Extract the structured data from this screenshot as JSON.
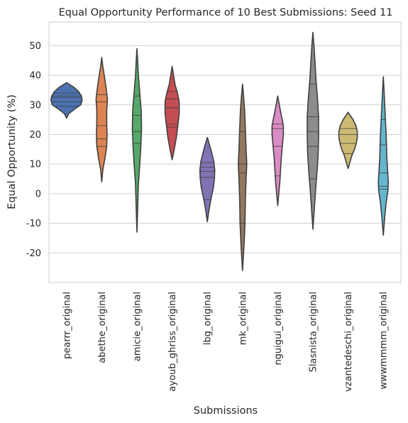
{
  "chart_data": {
    "type": "violin",
    "title": "Equal Opportunity Performance of 10 Best Submissions: Seed 11",
    "xlabel": "Submissions",
    "ylabel": "Equal Opportunity (%)",
    "ylim": [
      -30,
      58
    ],
    "yticks": [
      -20,
      -10,
      0,
      10,
      20,
      30,
      40,
      50
    ],
    "grid": "horizontal",
    "categories": [
      "pearrr_original",
      "abethe_original",
      "amicie_original",
      "ayoub_ghriss_original",
      "lbg_original",
      "mk_original",
      "nguigui_original",
      "Slasnista_original",
      "vzantedeschi_original",
      "wwwmmmm_original"
    ],
    "colors": [
      "#4c72b0",
      "#dd8452",
      "#55a868",
      "#c44e52",
      "#8172b3",
      "#937860",
      "#da8bc3",
      "#8c8c8c",
      "#ccb974",
      "#64b5cd"
    ],
    "series": [
      {
        "min": 25.5,
        "max": 37.5,
        "quartiles": [
          29.5,
          31.5,
          33.5
        ],
        "points": [
          29.5,
          31.0,
          32.5,
          33.0,
          34.0
        ],
        "profile": [
          [
            25.5,
            0
          ],
          [
            27,
            3
          ],
          [
            28.5,
            11
          ],
          [
            30,
            20
          ],
          [
            31.5,
            22
          ],
          [
            33,
            21
          ],
          [
            34.5,
            17
          ],
          [
            36,
            10
          ],
          [
            37.5,
            0
          ]
        ]
      },
      {
        "min": 4,
        "max": 46,
        "quartiles": [
          16,
          22.5,
          33
        ],
        "points": [
          16,
          18.5,
          23,
          31,
          33.5
        ],
        "profile": [
          [
            4,
            0
          ],
          [
            8,
            1.5
          ],
          [
            12,
            4.5
          ],
          [
            16,
            7
          ],
          [
            20,
            7.5
          ],
          [
            24,
            7
          ],
          [
            28,
            7
          ],
          [
            32,
            8
          ],
          [
            36,
            6
          ],
          [
            40,
            3.5
          ],
          [
            43,
            1.5
          ],
          [
            46,
            0
          ]
        ]
      },
      {
        "min": -13,
        "max": 49,
        "quartiles": [
          17,
          21.5,
          27
        ],
        "points": [
          17,
          21,
          26.5,
          33
        ],
        "profile": [
          [
            -13,
            0
          ],
          [
            -5,
            1
          ],
          [
            3,
            2
          ],
          [
            10,
            4
          ],
          [
            16,
            5.5
          ],
          [
            22,
            6.5
          ],
          [
            28,
            6
          ],
          [
            34,
            4
          ],
          [
            40,
            2
          ],
          [
            45,
            1
          ],
          [
            49,
            0
          ]
        ]
      },
      {
        "min": 11.5,
        "max": 43,
        "quartiles": [
          22.5,
          28,
          32
        ],
        "points": [
          22.5,
          23.5,
          29,
          32,
          34.5
        ],
        "profile": [
          [
            11.5,
            0
          ],
          [
            15,
            3
          ],
          [
            19,
            6
          ],
          [
            23,
            8
          ],
          [
            27,
            10
          ],
          [
            31,
            10
          ],
          [
            34,
            7.5
          ],
          [
            37,
            4
          ],
          [
            40,
            2
          ],
          [
            43,
            0
          ]
        ]
      },
      {
        "min": -9.5,
        "max": 19,
        "quartiles": [
          5,
          7.5,
          9
        ],
        "points": [
          -2,
          5.5,
          7.5,
          9,
          10.5
        ],
        "profile": [
          [
            -9.5,
            0
          ],
          [
            -6,
            2
          ],
          [
            -2,
            5
          ],
          [
            2,
            8.5
          ],
          [
            5,
            10
          ],
          [
            8,
            10.5
          ],
          [
            11,
            9
          ],
          [
            14,
            6
          ],
          [
            17,
            2.5
          ],
          [
            19,
            0
          ]
        ]
      },
      {
        "min": -26,
        "max": 37,
        "quartiles": [
          -5,
          8.5,
          21
        ],
        "points": [
          -10,
          7,
          10,
          21
        ],
        "profile": [
          [
            -26,
            0
          ],
          [
            -18,
            2
          ],
          [
            -10,
            3.5
          ],
          [
            -2,
            4
          ],
          [
            5,
            5
          ],
          [
            10,
            6
          ],
          [
            15,
            5
          ],
          [
            22,
            4
          ],
          [
            28,
            3
          ],
          [
            33,
            1.5
          ],
          [
            37,
            0
          ]
        ]
      },
      {
        "min": -4,
        "max": 33,
        "quartiles": [
          6,
          16,
          22.5
        ],
        "points": [
          6,
          16,
          22,
          23.5
        ],
        "profile": [
          [
            -4,
            0
          ],
          [
            0,
            1.5
          ],
          [
            4,
            3
          ],
          [
            8,
            4
          ],
          [
            12,
            5
          ],
          [
            16,
            6.5
          ],
          [
            20,
            8
          ],
          [
            23,
            8
          ],
          [
            26,
            5.5
          ],
          [
            29,
            3
          ],
          [
            33,
            0
          ]
        ]
      },
      {
        "min": -12,
        "max": 54.5,
        "quartiles": [
          9,
          23.5,
          32
        ],
        "points": [
          5,
          16,
          21,
          26,
          37
        ],
        "profile": [
          [
            -12,
            0
          ],
          [
            -5,
            2
          ],
          [
            2,
            4
          ],
          [
            8,
            6
          ],
          [
            14,
            7.5
          ],
          [
            20,
            8
          ],
          [
            26,
            8
          ],
          [
            32,
            6.5
          ],
          [
            38,
            4.5
          ],
          [
            44,
            3
          ],
          [
            50,
            1.5
          ],
          [
            54.5,
            0
          ]
        ]
      },
      {
        "min": 8.5,
        "max": 27.5,
        "quartiles": [
          16.5,
          19.5,
          21.5
        ],
        "points": [
          13.5,
          17,
          20,
          22
        ],
        "profile": [
          [
            8.5,
            0
          ],
          [
            11,
            3
          ],
          [
            13,
            5.5
          ],
          [
            15,
            9
          ],
          [
            17,
            11.5
          ],
          [
            19,
            13
          ],
          [
            21,
            13
          ],
          [
            23,
            11
          ],
          [
            25,
            7
          ],
          [
            27.5,
            0
          ]
        ]
      },
      {
        "min": -14,
        "max": 39.5,
        "quartiles": [
          2,
          7.5,
          16
        ],
        "points": [
          1.5,
          2.5,
          7,
          16.5,
          25
        ],
        "profile": [
          [
            -14,
            0
          ],
          [
            -8,
            2
          ],
          [
            -3,
            4
          ],
          [
            1,
            6.5
          ],
          [
            4,
            7
          ],
          [
            8,
            6
          ],
          [
            12,
            5
          ],
          [
            16,
            4.5
          ],
          [
            20,
            4
          ],
          [
            25,
            3
          ],
          [
            30,
            2
          ],
          [
            35,
            1
          ],
          [
            39.5,
            0
          ]
        ]
      }
    ]
  }
}
